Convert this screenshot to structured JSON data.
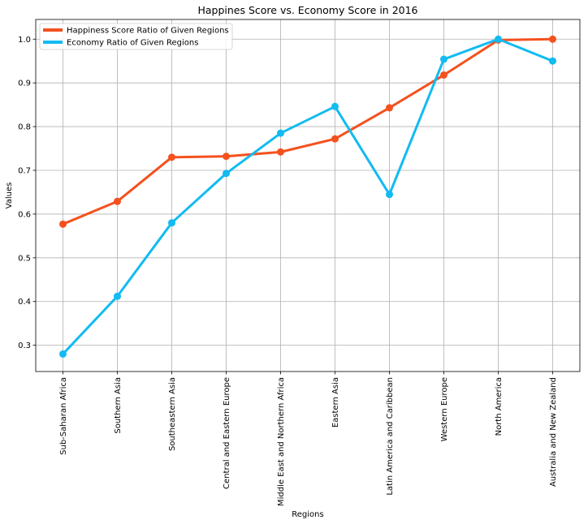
{
  "chart_data": {
    "type": "line",
    "title": "Happines Score vs. Economy Score in 2016",
    "xlabel": "Regions",
    "ylabel": "Values",
    "ylim": [
      0.24,
      1.045
    ],
    "yticks": [
      0.3,
      0.4,
      0.5,
      0.6,
      0.7,
      0.8,
      0.9,
      1.0
    ],
    "ytick_labels": [
      "0.3",
      "0.4",
      "0.5",
      "0.6",
      "0.7",
      "0.8",
      "0.9",
      "1.0"
    ],
    "grid": true,
    "legend_position": "top-left",
    "categories": [
      "Sub-Saharan Africa",
      "Southern Asia",
      "Southeastern Asia",
      "Central and Eastern Europe",
      "Middle East and Northern Africa",
      "Eastern Asia",
      "Latin America and Caribbean",
      "Western Europe",
      "North America",
      "Australia and New Zealand"
    ],
    "series": [
      {
        "name": "Happiness Score Ratio of Given Regions",
        "color": "#f4511e",
        "values": [
          0.577,
          0.629,
          0.73,
          0.732,
          0.742,
          0.772,
          0.843,
          0.918,
          0.998,
          1.0
        ]
      },
      {
        "name": "Economy Ratio of Given Regions",
        "color": "#12bbf2",
        "values": [
          0.28,
          0.412,
          0.58,
          0.693,
          0.785,
          0.846,
          0.645,
          0.954,
          1.0,
          0.95
        ]
      }
    ]
  }
}
